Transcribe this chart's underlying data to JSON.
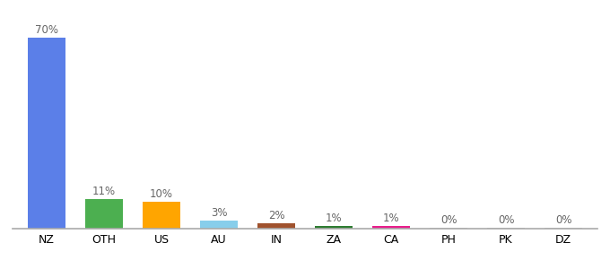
{
  "categories": [
    "NZ",
    "OTH",
    "US",
    "AU",
    "IN",
    "ZA",
    "CA",
    "PH",
    "PK",
    "DZ"
  ],
  "values": [
    70,
    11,
    10,
    3,
    2,
    1,
    1,
    0.3,
    0.3,
    0.3
  ],
  "labels": [
    "70%",
    "11%",
    "10%",
    "3%",
    "2%",
    "1%",
    "1%",
    "0%",
    "0%",
    "0%"
  ],
  "bar_colors": [
    "#5b7fe8",
    "#4caf50",
    "#ffa500",
    "#87ceeb",
    "#a0522d",
    "#2e7d32",
    "#e91e8c",
    "#cccccc",
    "#cccccc",
    "#cccccc"
  ],
  "background_color": "#ffffff",
  "ylim": [
    0,
    76
  ],
  "bar_width": 0.65,
  "label_color": "#666666",
  "label_fontsize": 8.5,
  "xtick_fontsize": 9,
  "bottom_line_color": "#aaaaaa"
}
